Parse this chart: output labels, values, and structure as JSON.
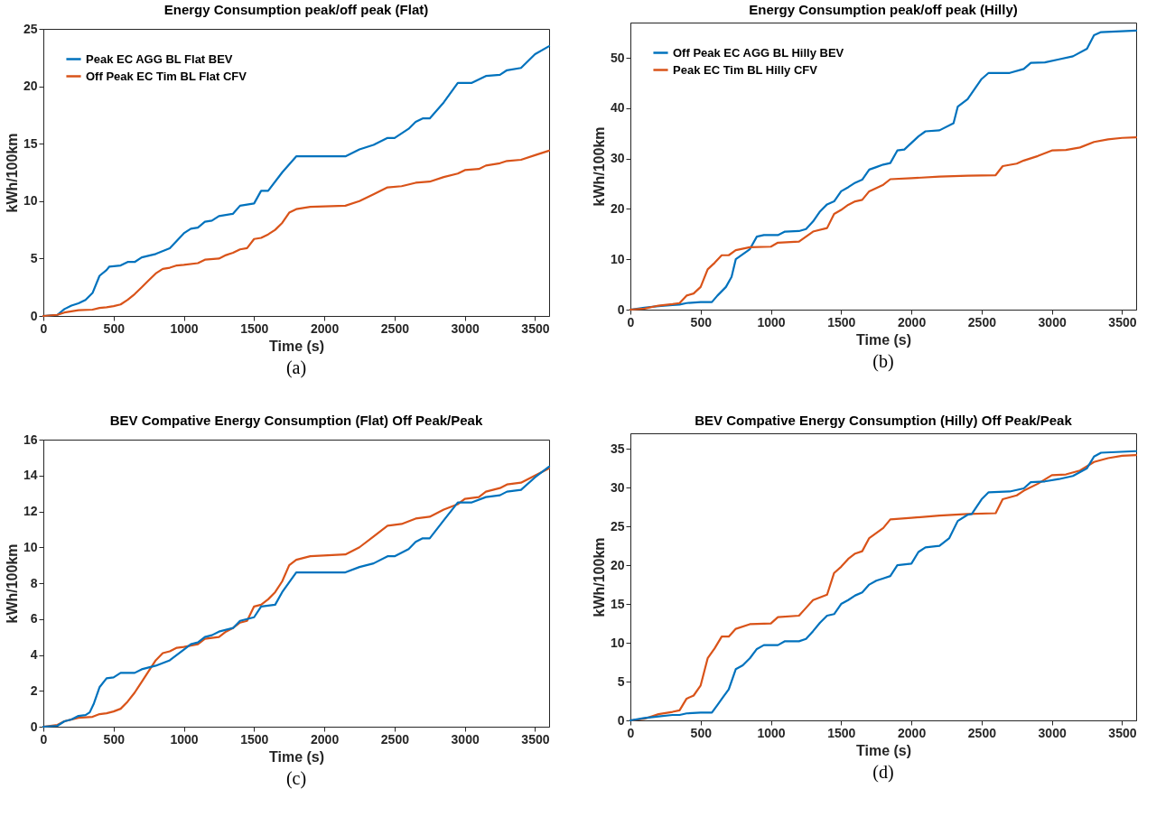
{
  "chart_data": [
    {
      "type": "line",
      "title": "Energy Consumption peak/off peak (Flat)",
      "xlabel": "Time (s)",
      "ylabel": "kWh/100km",
      "annotations": [
        "(a)"
      ],
      "xlim": [
        0,
        3600
      ],
      "xticks": [
        0,
        500,
        1000,
        1500,
        2000,
        2500,
        3000,
        3500
      ],
      "ylim": [
        0,
        25
      ],
      "yticks": [
        0,
        5,
        10,
        15,
        20,
        25
      ],
      "grid": false,
      "legend": "top left",
      "line_style": "solid",
      "series": [
        {
          "name": "Peak EC AGG BL Flat BEV",
          "color": "#0072bd",
          "x": [
            0,
            100,
            150,
            200,
            250,
            300,
            350,
            400,
            450,
            470,
            550,
            600,
            650,
            700,
            800,
            900,
            1000,
            1050,
            1100,
            1150,
            1200,
            1250,
            1350,
            1400,
            1500,
            1550,
            1600,
            1700,
            1800,
            2150,
            2250,
            2350,
            2450,
            2500,
            2600,
            2650,
            2700,
            2750,
            2850,
            2950,
            3050,
            3150,
            3250,
            3300,
            3400,
            3500,
            3600
          ],
          "values": [
            0,
            0.1,
            0.6,
            0.9,
            1.1,
            1.4,
            2,
            3.5,
            4,
            4.3,
            4.4,
            4.7,
            4.7,
            5.1,
            5.4,
            5.9,
            7.2,
            7.6,
            7.7,
            8.2,
            8.3,
            8.7,
            8.9,
            9.6,
            9.8,
            10.9,
            10.9,
            12.5,
            13.9,
            13.9,
            14.5,
            14.9,
            15.5,
            15.5,
            16.3,
            16.9,
            17.2,
            17.2,
            18.6,
            20.3,
            20.3,
            20.9,
            21,
            21.4,
            21.6,
            22.8,
            23.5
          ]
        },
        {
          "name": "Off Peak EC Tim BL Flat CFV",
          "color": "#d95319",
          "x": [
            0,
            100,
            150,
            250,
            350,
            400,
            450,
            500,
            550,
            600,
            650,
            700,
            750,
            800,
            850,
            900,
            950,
            1000,
            1100,
            1150,
            1250,
            1300,
            1350,
            1400,
            1450,
            1500,
            1550,
            1600,
            1650,
            1700,
            1750,
            1800,
            1900,
            2150,
            2250,
            2350,
            2450,
            2550,
            2650,
            2750,
            2850,
            2950,
            3000,
            3100,
            3150,
            3250,
            3300,
            3400,
            3500,
            3600
          ],
          "values": [
            0,
            0.1,
            0.3,
            0.5,
            0.55,
            0.7,
            0.75,
            0.85,
            1,
            1.4,
            1.9,
            2.5,
            3.1,
            3.7,
            4.1,
            4.2,
            4.4,
            4.45,
            4.6,
            4.9,
            5,
            5.3,
            5.5,
            5.8,
            5.9,
            6.7,
            6.8,
            7.1,
            7.5,
            8.1,
            9,
            9.3,
            9.5,
            9.6,
            10,
            10.6,
            11.2,
            11.3,
            11.6,
            11.7,
            12.1,
            12.4,
            12.7,
            12.8,
            13.1,
            13.3,
            13.5,
            13.6,
            14,
            14.4
          ]
        }
      ]
    },
    {
      "type": "line",
      "title": "Energy Consumption peak/off peak (Hilly)",
      "xlabel": "Time (s)",
      "ylabel": "kWh/100km",
      "annotations": [
        "(b)"
      ],
      "xlim": [
        0,
        3600
      ],
      "xticks": [
        0,
        500,
        1000,
        1500,
        2000,
        2500,
        3000,
        3500
      ],
      "ylim": [
        0,
        57
      ],
      "yticks": [
        0,
        10,
        20,
        30,
        40,
        50
      ],
      "grid": false,
      "legend": "top left",
      "line_style": "solid",
      "series": [
        {
          "name": "Off Peak EC AGG BL Hilly BEV",
          "color": "#0072bd",
          "x": [
            0,
            100,
            200,
            300,
            350,
            400,
            500,
            580,
            620,
            680,
            720,
            750,
            800,
            850,
            900,
            950,
            1050,
            1100,
            1200,
            1250,
            1300,
            1350,
            1400,
            1450,
            1500,
            1550,
            1600,
            1650,
            1700,
            1750,
            1800,
            1850,
            1900,
            1950,
            2050,
            2100,
            2200,
            2300,
            2330,
            2400,
            2500,
            2550,
            2700,
            2800,
            2850,
            2950,
            3050,
            3150,
            3250,
            3300,
            3350,
            3600
          ],
          "values": [
            0,
            0.4,
            0.7,
            0.9,
            1,
            1.3,
            1.5,
            1.5,
            2.8,
            4.5,
            6.5,
            10,
            11,
            12,
            14.5,
            14.8,
            14.8,
            15.5,
            15.6,
            16,
            17.5,
            19.5,
            20.9,
            21.5,
            23.5,
            24.3,
            25.2,
            25.8,
            27.8,
            28.3,
            28.8,
            29.1,
            31.6,
            31.8,
            34.4,
            35.4,
            35.6,
            37,
            40.3,
            41.8,
            45.8,
            47,
            47,
            47.8,
            49,
            49.1,
            49.7,
            50.3,
            51.8,
            54.5,
            55.1,
            55.4
          ]
        },
        {
          "name": "Peak EC Tim BL Hilly CFV",
          "color": "#d95319",
          "x": [
            0,
            100,
            200,
            300,
            350,
            400,
            450,
            500,
            550,
            600,
            650,
            700,
            750,
            850,
            1000,
            1050,
            1200,
            1250,
            1300,
            1400,
            1450,
            1500,
            1550,
            1600,
            1650,
            1700,
            1800,
            1850,
            2000,
            2200,
            2400,
            2600,
            2650,
            2750,
            2800,
            2900,
            3000,
            3100,
            3200,
            3300,
            3400,
            3500,
            3600
          ],
          "values": [
            0,
            0.2,
            0.8,
            1.1,
            1.3,
            2.8,
            3.2,
            4.5,
            8,
            9.3,
            10.8,
            10.8,
            11.8,
            12.4,
            12.5,
            13.3,
            13.5,
            14.5,
            15.5,
            16.2,
            19,
            19.8,
            20.8,
            21.5,
            21.8,
            23.5,
            24.8,
            25.9,
            26.1,
            26.4,
            26.6,
            26.7,
            28.5,
            29,
            29.6,
            30.5,
            31.6,
            31.7,
            32.2,
            33.3,
            33.8,
            34.1,
            34.2
          ]
        }
      ]
    },
    {
      "type": "line",
      "title": "BEV Compative Energy Consumption (Flat) Off Peak/Peak",
      "xlabel": "Time (s)",
      "ylabel": "kWh/100km",
      "annotations": [
        "(c)"
      ],
      "xlim": [
        0,
        3600
      ],
      "xticks": [
        0,
        500,
        1000,
        1500,
        2000,
        2500,
        3000,
        3500
      ],
      "ylim": [
        0,
        16
      ],
      "yticks": [
        0,
        2,
        4,
        6,
        8,
        10,
        12,
        14,
        16
      ],
      "grid": false,
      "line_style": "solid",
      "series": [
        {
          "color": "#d95319",
          "x": [
            0,
            100,
            150,
            250,
            350,
            400,
            450,
            500,
            550,
            600,
            650,
            700,
            750,
            800,
            850,
            900,
            950,
            1000,
            1100,
            1150,
            1250,
            1300,
            1350,
            1400,
            1450,
            1500,
            1550,
            1600,
            1650,
            1700,
            1750,
            1800,
            1900,
            2150,
            2250,
            2350,
            2450,
            2550,
            2650,
            2750,
            2850,
            2950,
            3000,
            3100,
            3150,
            3250,
            3300,
            3400,
            3500,
            3600
          ],
          "values": [
            0,
            0.1,
            0.3,
            0.5,
            0.55,
            0.7,
            0.75,
            0.85,
            1,
            1.4,
            1.9,
            2.5,
            3.1,
            3.7,
            4.1,
            4.2,
            4.4,
            4.45,
            4.6,
            4.9,
            5,
            5.3,
            5.5,
            5.8,
            5.9,
            6.7,
            6.8,
            7.1,
            7.5,
            8.1,
            9,
            9.3,
            9.5,
            9.6,
            10,
            10.6,
            11.2,
            11.3,
            11.6,
            11.7,
            12.1,
            12.4,
            12.7,
            12.8,
            13.1,
            13.3,
            13.5,
            13.6,
            14,
            14.4
          ]
        },
        {
          "color": "#0072bd",
          "x": [
            0,
            100,
            150,
            200,
            250,
            300,
            330,
            360,
            400,
            450,
            500,
            550,
            650,
            700,
            800,
            900,
            1000,
            1050,
            1100,
            1150,
            1200,
            1250,
            1350,
            1400,
            1500,
            1550,
            1650,
            1700,
            1800,
            2150,
            2250,
            2350,
            2450,
            2500,
            2600,
            2650,
            2700,
            2750,
            2850,
            2950,
            3050,
            3150,
            3250,
            3300,
            3400,
            3500,
            3600
          ],
          "values": [
            0,
            0.05,
            0.3,
            0.4,
            0.6,
            0.65,
            0.8,
            1.3,
            2.2,
            2.7,
            2.75,
            3,
            3,
            3.2,
            3.4,
            3.7,
            4.3,
            4.6,
            4.7,
            5,
            5.1,
            5.3,
            5.5,
            5.9,
            6.1,
            6.7,
            6.8,
            7.5,
            8.6,
            8.6,
            8.9,
            9.1,
            9.5,
            9.5,
            9.9,
            10.3,
            10.5,
            10.5,
            11.5,
            12.5,
            12.5,
            12.8,
            12.9,
            13.1,
            13.2,
            13.9,
            14.5
          ]
        }
      ]
    },
    {
      "type": "line",
      "title": "BEV Compative Energy Consumption (Hilly) Off Peak/Peak",
      "xlabel": "Time (s)",
      "ylabel": "kWh/100km",
      "annotations": [
        "(d)"
      ],
      "xlim": [
        0,
        3600
      ],
      "xticks": [
        0,
        500,
        1000,
        1500,
        2000,
        2500,
        3000,
        3500
      ],
      "ylim": [
        0,
        37
      ],
      "yticks": [
        0,
        5,
        10,
        15,
        20,
        25,
        30,
        35
      ],
      "grid": false,
      "line_style": "solid",
      "series": [
        {
          "color": "#d95319",
          "x": [
            0,
            100,
            200,
            300,
            350,
            400,
            450,
            500,
            550,
            600,
            650,
            700,
            750,
            850,
            1000,
            1050,
            1200,
            1250,
            1300,
            1400,
            1450,
            1500,
            1550,
            1600,
            1650,
            1700,
            1800,
            1850,
            2000,
            2200,
            2400,
            2600,
            2650,
            2750,
            2800,
            2900,
            3000,
            3100,
            3200,
            3300,
            3400,
            3500,
            3600
          ],
          "values": [
            0,
            0.2,
            0.8,
            1.1,
            1.3,
            2.8,
            3.2,
            4.5,
            8,
            9.3,
            10.8,
            10.8,
            11.8,
            12.4,
            12.5,
            13.3,
            13.5,
            14.5,
            15.5,
            16.2,
            19,
            19.8,
            20.8,
            21.5,
            21.8,
            23.5,
            24.8,
            25.9,
            26.1,
            26.4,
            26.6,
            26.7,
            28.5,
            29,
            29.6,
            30.5,
            31.6,
            31.7,
            32.2,
            33.3,
            33.8,
            34.1,
            34.2
          ]
        },
        {
          "color": "#0072bd",
          "x": [
            0,
            100,
            200,
            300,
            350,
            400,
            500,
            580,
            620,
            660,
            700,
            750,
            800,
            850,
            900,
            950,
            1050,
            1100,
            1200,
            1250,
            1300,
            1350,
            1400,
            1450,
            1500,
            1550,
            1600,
            1650,
            1700,
            1750,
            1800,
            1850,
            1900,
            2000,
            2050,
            2100,
            2200,
            2270,
            2330,
            2400,
            2430,
            2500,
            2550,
            2700,
            2800,
            2850,
            2950,
            3050,
            3150,
            3250,
            3300,
            3350,
            3600
          ],
          "values": [
            0,
            0.3,
            0.5,
            0.7,
            0.7,
            0.9,
            1,
            1,
            2,
            3,
            4,
            6.6,
            7.1,
            8,
            9.2,
            9.7,
            9.7,
            10.2,
            10.2,
            10.5,
            11.5,
            12.6,
            13.5,
            13.7,
            15,
            15.5,
            16.1,
            16.5,
            17.5,
            18,
            18.3,
            18.6,
            20,
            20.2,
            21.7,
            22.3,
            22.5,
            23.5,
            25.7,
            26.5,
            26.6,
            28.5,
            29.4,
            29.5,
            29.9,
            30.7,
            30.8,
            31.1,
            31.5,
            32.5,
            34,
            34.5,
            34.7
          ]
        }
      ]
    }
  ]
}
